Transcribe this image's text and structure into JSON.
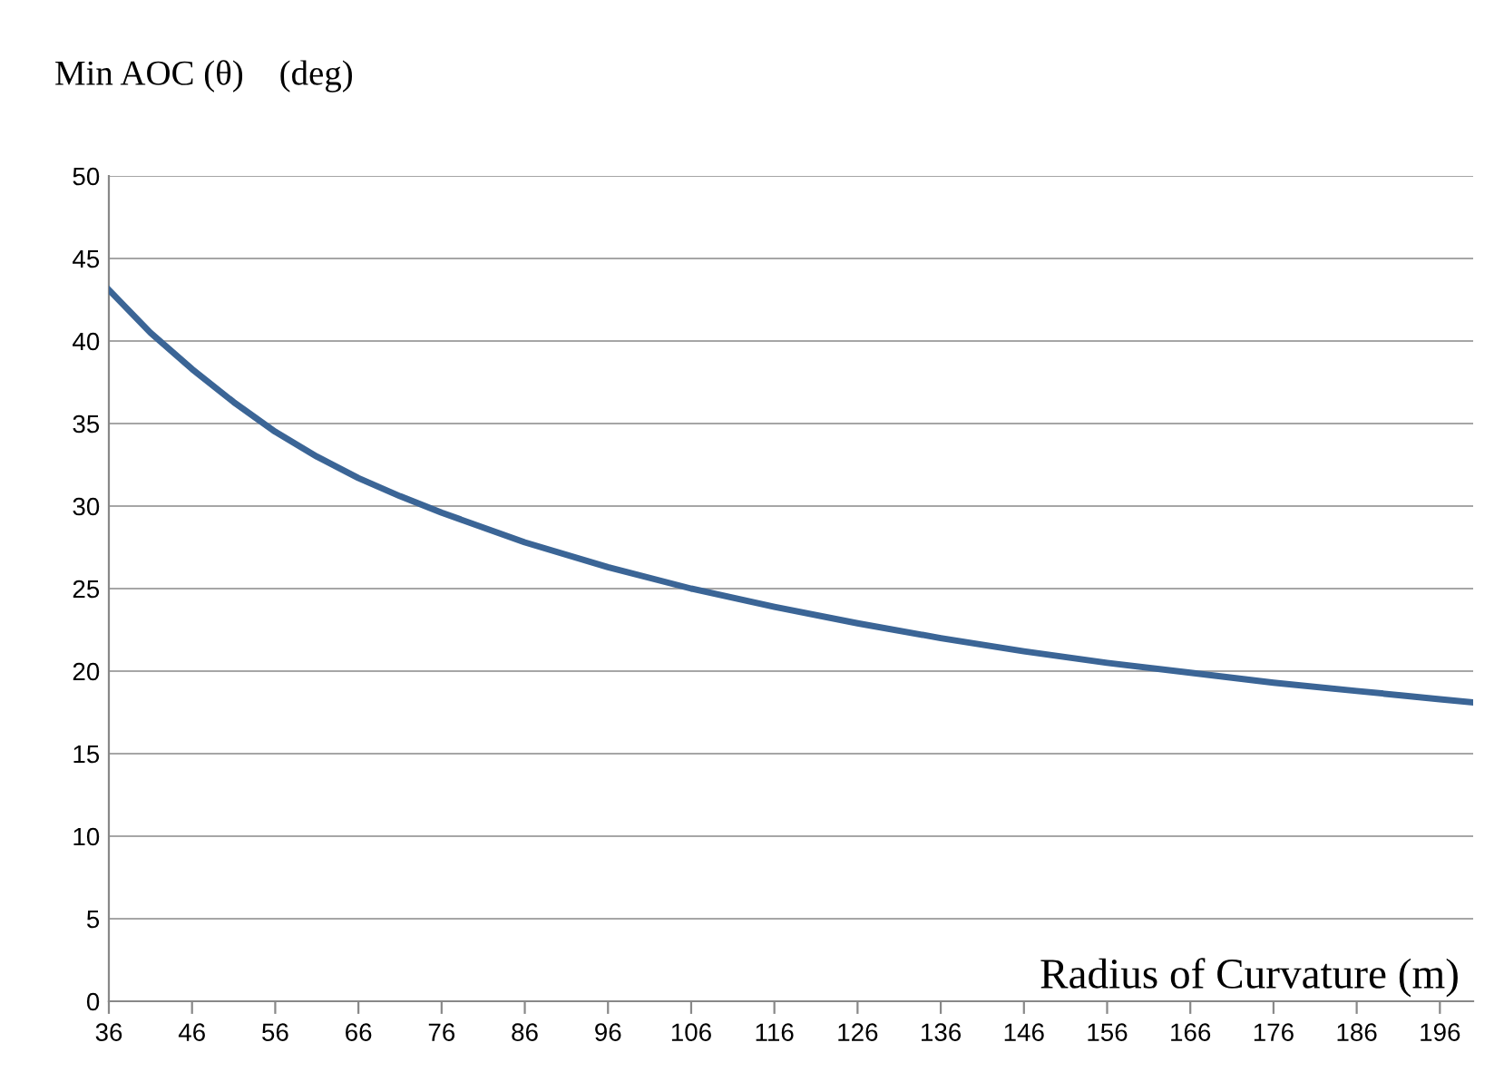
{
  "chart_data": {
    "type": "line",
    "ylabel": "Min AOC (θ)    (deg)",
    "xlabel": "Radius of Curvature (m)",
    "x": [
      36,
      41,
      46,
      51,
      56,
      61,
      66,
      71,
      76,
      86,
      96,
      106,
      116,
      126,
      136,
      146,
      156,
      166,
      176,
      186,
      196,
      200
    ],
    "series": [
      {
        "color": "#3b6596",
        "values": [
          43.1,
          40.5,
          38.3,
          36.3,
          34.5,
          33.0,
          31.7,
          30.6,
          29.6,
          27.8,
          26.3,
          25.0,
          23.9,
          22.9,
          22.0,
          21.2,
          20.5,
          19.9,
          19.3,
          18.8,
          18.3,
          18.1
        ]
      }
    ],
    "xlim": [
      36,
      200
    ],
    "xticks": [
      36,
      46,
      56,
      66,
      76,
      86,
      96,
      106,
      116,
      126,
      136,
      146,
      156,
      166,
      176,
      186,
      196
    ],
    "ylim": [
      0,
      50
    ],
    "yticks": [
      0,
      5,
      10,
      15,
      20,
      25,
      30,
      35,
      40,
      45,
      50
    ],
    "grid": "y",
    "marker": "none",
    "line_style": "solid"
  }
}
